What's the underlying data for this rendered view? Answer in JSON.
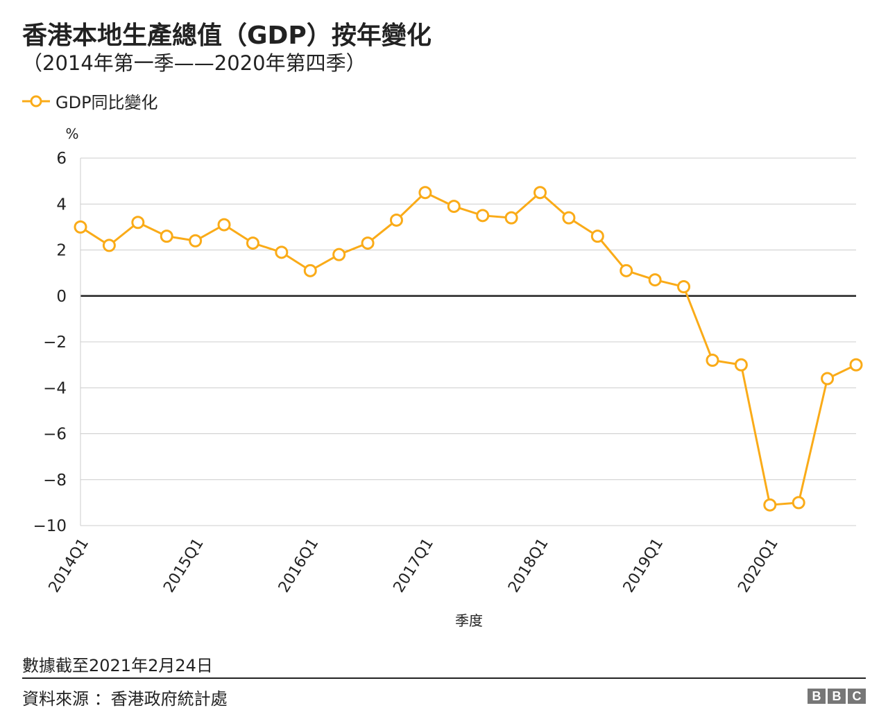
{
  "chart_data": {
    "type": "line",
    "title": "香港本地生產總值（GDP）按年變化",
    "subtitle": "（2014年第一季——2020年第四季）",
    "ylabel": "%",
    "xlabel": "季度",
    "ylim": [
      -10,
      6
    ],
    "yticks": [
      6,
      4,
      2,
      0,
      -2,
      -4,
      -6,
      -8,
      -10
    ],
    "ytick_labels": [
      "6",
      "4",
      "2",
      "0",
      "−2",
      "−4",
      "−6",
      "−8",
      "−10"
    ],
    "xtick_labels": [
      "2014Q1",
      "2015Q1",
      "2016Q1",
      "2017Q1",
      "2018Q1",
      "2019Q1",
      "2020Q1"
    ],
    "grid": true,
    "legend": "top-left",
    "categories": [
      "2014Q1",
      "2014Q2",
      "2014Q3",
      "2014Q4",
      "2015Q1",
      "2015Q2",
      "2015Q3",
      "2015Q4",
      "2016Q1",
      "2016Q2",
      "2016Q3",
      "2016Q4",
      "2017Q1",
      "2017Q2",
      "2017Q3",
      "2017Q4",
      "2018Q1",
      "2018Q2",
      "2018Q3",
      "2018Q4",
      "2019Q1",
      "2019Q2",
      "2019Q3",
      "2019Q4",
      "2020Q1",
      "2020Q2",
      "2020Q3",
      "2020Q4"
    ],
    "series": [
      {
        "name": "GDP同比變化",
        "color": "#FAAB18",
        "values": [
          3.0,
          2.2,
          3.2,
          2.6,
          2.4,
          3.1,
          2.3,
          1.9,
          1.1,
          1.8,
          2.3,
          3.3,
          4.5,
          3.9,
          3.5,
          3.4,
          4.5,
          3.4,
          2.6,
          1.1,
          0.7,
          0.4,
          -2.8,
          -3.0,
          -9.1,
          -9.0,
          -3.6,
          -3.0
        ]
      }
    ]
  },
  "footer": {
    "note": "數據截至2021年2月24日",
    "source": "資料來源 ：香港政府統計處",
    "logo": [
      "B",
      "B",
      "C"
    ]
  }
}
